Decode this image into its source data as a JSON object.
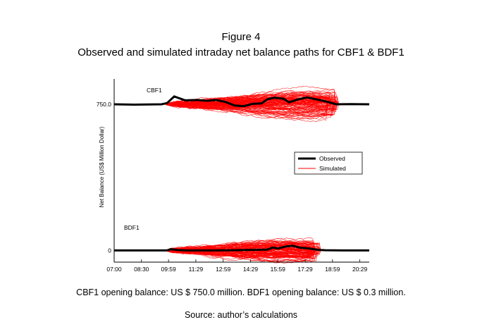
{
  "figure": {
    "label": "Figure 4",
    "caption": "Observed and simulated intraday net balance paths for CBF1 & BDF1",
    "opening_note": "CBF1 opening balance: US $ 750.0 million. BDF1 opening balance: US $ 0.3 million.",
    "source": "Source: author’s calculations"
  },
  "chart_data": {
    "type": "line",
    "title": "Observed and simulated intraday net balance paths for CBF1 & BDF1",
    "xlabel": "",
    "ylabel": "Net Balance (US$ Million Dollar)",
    "x_ticks": [
      "07:00",
      "08:30",
      "09:59",
      "11:29",
      "12:59",
      "14:29",
      "15:59",
      "17:29",
      "18:59",
      "20:29"
    ],
    "x_range_hours": [
      7.0,
      21.0
    ],
    "y_ticks": [
      {
        "label": "750.0",
        "value": 750.0
      },
      {
        "label": "0",
        "value": 0
      }
    ],
    "y_range": [
      -60,
      880
    ],
    "legend": {
      "position": "center-right",
      "entries": [
        {
          "label": "Observed",
          "color": "#000000",
          "style": "thick"
        },
        {
          "label": "Simulated",
          "color": "#ff0000",
          "style": "thin"
        }
      ]
    },
    "panels": [
      {
        "name": "CBF1",
        "label": "CBF1",
        "opening_balance": 750.0,
        "sim_start_hour": 9.8,
        "sim_end_hour": 19.2,
        "observed": [
          [
            7.0,
            750
          ],
          [
            8.1,
            748
          ],
          [
            9.6,
            750
          ],
          [
            9.9,
            756
          ],
          [
            10.3,
            790
          ],
          [
            10.6,
            780
          ],
          [
            10.9,
            770
          ],
          [
            11.5,
            772
          ],
          [
            12.1,
            768
          ],
          [
            12.6,
            772
          ],
          [
            13.1,
            762
          ],
          [
            13.6,
            744
          ],
          [
            14.1,
            740
          ],
          [
            14.6,
            752
          ],
          [
            15.1,
            755
          ],
          [
            15.4,
            775
          ],
          [
            15.8,
            784
          ],
          [
            16.3,
            778
          ],
          [
            16.6,
            760
          ],
          [
            17.1,
            775
          ],
          [
            17.6,
            785
          ],
          [
            18.1,
            775
          ],
          [
            18.6,
            765
          ],
          [
            19.2,
            750
          ],
          [
            20.0,
            751
          ],
          [
            21.0,
            750
          ]
        ]
      },
      {
        "name": "BDF1",
        "label": "BDF1",
        "opening_balance": 0.3,
        "sim_start_hour": 9.8,
        "sim_end_hour": 18.2,
        "observed": [
          [
            7.0,
            0
          ],
          [
            9.9,
            0
          ],
          [
            10.1,
            6
          ],
          [
            10.5,
            2
          ],
          [
            11.0,
            0
          ],
          [
            12.5,
            0
          ],
          [
            13.5,
            1
          ],
          [
            14.6,
            3
          ],
          [
            15.4,
            4
          ],
          [
            15.7,
            15
          ],
          [
            16.0,
            10
          ],
          [
            16.4,
            20
          ],
          [
            16.8,
            24
          ],
          [
            17.2,
            14
          ],
          [
            17.7,
            10
          ],
          [
            18.2,
            3
          ],
          [
            18.6,
            1
          ],
          [
            19.5,
            0
          ],
          [
            21.0,
            0
          ]
        ]
      }
    ]
  }
}
